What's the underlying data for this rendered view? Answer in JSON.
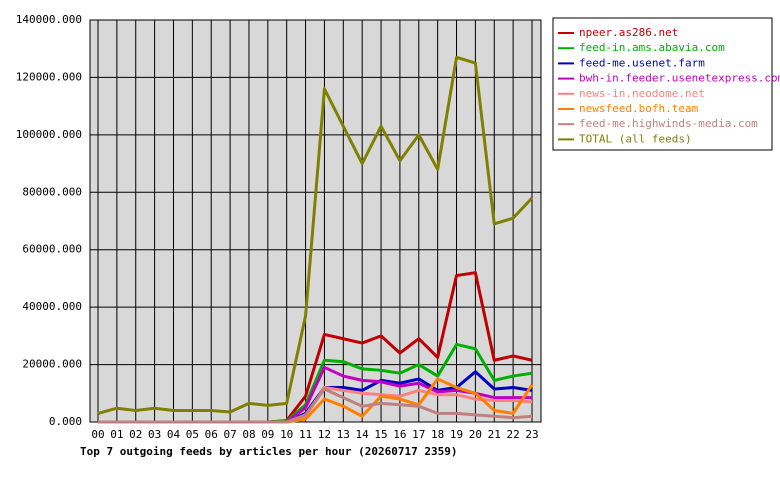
{
  "chart_data": {
    "type": "line",
    "title": "Top 7 outgoing feeds by articles per hour (20260717 2359)",
    "categories": [
      "00",
      "01",
      "02",
      "03",
      "04",
      "05",
      "06",
      "07",
      "08",
      "09",
      "10",
      "11",
      "12",
      "13",
      "14",
      "15",
      "16",
      "17",
      "18",
      "19",
      "20",
      "21",
      "22",
      "23"
    ],
    "ylim": [
      0,
      140000
    ],
    "yticks": [
      {
        "value": 0,
        "label": "0.000"
      },
      {
        "value": 20000,
        "label": "20000.000"
      },
      {
        "value": 40000,
        "label": "40000.000"
      },
      {
        "value": 60000,
        "label": "60000.000"
      },
      {
        "value": 80000,
        "label": "80000.000"
      },
      {
        "value": 100000,
        "label": "100000.000"
      },
      {
        "value": 120000,
        "label": "120000.000"
      },
      {
        "value": 140000,
        "label": "140000.000"
      }
    ],
    "grid": true,
    "legend": "right",
    "series": [
      {
        "name": "npeer.as286.net",
        "color": "#c00000",
        "values": [
          0,
          0,
          0,
          0,
          0,
          0,
          0,
          0,
          0,
          0,
          500,
          9000,
          30500,
          29000,
          27500,
          30000,
          24000,
          29000,
          22500,
          51000,
          52000,
          21500,
          23000,
          21500
        ]
      },
      {
        "name": "feed-in.ams.abavia.com",
        "color": "#00b000",
        "values": [
          0,
          0,
          0,
          0,
          0,
          0,
          0,
          0,
          0,
          0,
          300,
          6000,
          21500,
          21000,
          18500,
          18000,
          17000,
          20000,
          16000,
          27000,
          25500,
          14500,
          16000,
          17000
        ]
      },
      {
        "name": "feed-me.usenet.farm",
        "color": "#0000c0",
        "values": [
          0,
          0,
          0,
          0,
          0,
          0,
          0,
          0,
          0,
          0,
          0,
          3000,
          12000,
          12000,
          11000,
          14500,
          13500,
          15000,
          11000,
          12000,
          17500,
          11500,
          12000,
          11000
        ]
      },
      {
        "name": "bwh-in.feeder.usenetexpress.com",
        "color": "#c000c0",
        "values": [
          0,
          0,
          0,
          0,
          0,
          0,
          0,
          0,
          0,
          0,
          0,
          5000,
          19000,
          16000,
          14500,
          14000,
          12500,
          13500,
          10500,
          11000,
          10000,
          8500,
          8500,
          8500
        ]
      },
      {
        "name": "news-in.neodome.net",
        "color": "#ff8080",
        "values": [
          0,
          0,
          0,
          0,
          0,
          0,
          0,
          0,
          0,
          0,
          0,
          2000,
          12000,
          11000,
          10000,
          9500,
          9000,
          11000,
          9500,
          9500,
          8000,
          7500,
          7500,
          7000
        ]
      },
      {
        "name": "newsfeed.bofh.team",
        "color": "#ff8000",
        "values": [
          0,
          0,
          0,
          0,
          0,
          0,
          0,
          0,
          0,
          0,
          0,
          1000,
          8000,
          5500,
          2000,
          9000,
          8000,
          6000,
          15000,
          12000,
          10000,
          4000,
          3000,
          13000
        ]
      },
      {
        "name": "feed-me.highwinds-media.com",
        "color": "#c08080",
        "values": [
          0,
          0,
          0,
          0,
          0,
          0,
          0,
          0,
          0,
          0,
          0,
          2500,
          11500,
          8500,
          5500,
          6500,
          6000,
          5500,
          3000,
          3000,
          2500,
          2000,
          1500,
          2000
        ]
      },
      {
        "name": "TOTAL (all feeds)",
        "color": "#808000",
        "values": [
          3000,
          4800,
          4000,
          4800,
          4000,
          4000,
          4000,
          3500,
          6500,
          5800,
          6500,
          37000,
          116000,
          103000,
          90000,
          103000,
          91000,
          100000,
          88000,
          127000,
          125000,
          69000,
          71000,
          78000
        ]
      }
    ]
  }
}
